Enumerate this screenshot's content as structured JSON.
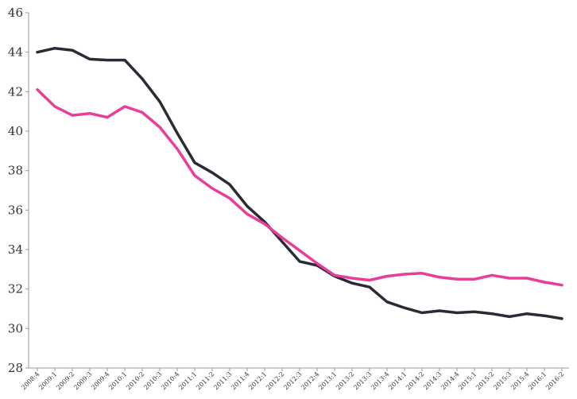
{
  "chart_data": {
    "type": "line",
    "title": "",
    "xlabel": "",
    "ylabel": "",
    "ylim": [
      28,
      46
    ],
    "yticks": [
      28,
      30,
      32,
      34,
      36,
      38,
      40,
      42,
      44,
      46
    ],
    "grid": false,
    "legend": "none",
    "categories": [
      "2008:4",
      "2009:1",
      "2009:2",
      "2009:3",
      "2009:4",
      "2010:1",
      "2010:2",
      "2010:3",
      "2010:4",
      "2011:1",
      "2011:2",
      "2011:3",
      "2011:4",
      "2012:1",
      "2012:2",
      "2012:3",
      "2012:4",
      "2013:1",
      "2013:2",
      "2013:3",
      "2013:4",
      "2014:1",
      "2014:2",
      "2014:3",
      "2014:4",
      "2015:1",
      "2015:2",
      "2015:3",
      "2015:4",
      "2016:1",
      "2016:2"
    ],
    "series": [
      {
        "color": "#2b2b35",
        "values": [
          44.0,
          44.2,
          44.1,
          43.65,
          43.6,
          43.6,
          42.65,
          41.5,
          39.9,
          38.4,
          37.9,
          37.3,
          36.2,
          35.4,
          34.4,
          33.4,
          33.2,
          32.65,
          32.3,
          32.1,
          31.35,
          31.05,
          30.8,
          30.9,
          30.8,
          30.85,
          30.75,
          30.6,
          30.75,
          30.65,
          30.5
        ]
      },
      {
        "color": "#e83e9a",
        "values": [
          42.1,
          41.25,
          40.8,
          40.9,
          40.7,
          41.25,
          40.95,
          40.2,
          39.1,
          37.75,
          37.1,
          36.6,
          35.8,
          35.3,
          34.6,
          33.95,
          33.3,
          32.7,
          32.55,
          32.45,
          32.65,
          32.75,
          32.8,
          32.6,
          32.5,
          32.5,
          32.7,
          32.55,
          32.55,
          32.35,
          32.2
        ]
      }
    ]
  }
}
